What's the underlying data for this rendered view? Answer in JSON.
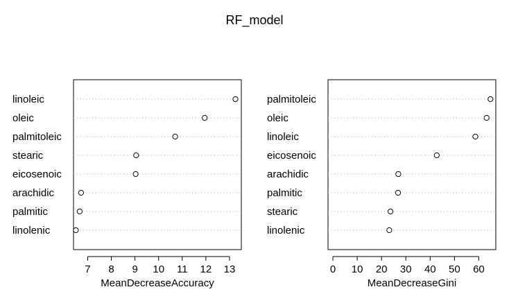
{
  "title": "RF_model",
  "chart_data": [
    {
      "type": "scatter",
      "subtype": "dotchart",
      "xlabel": "MeanDecreaseAccuracy",
      "ylabel": "",
      "xlim": [
        6.4,
        13.5
      ],
      "xticks": [
        7,
        8,
        9,
        10,
        11,
        12,
        13
      ],
      "grid": "dotted horizontal",
      "categories": [
        "linoleic",
        "oleic",
        "palmitoleic",
        "stearic",
        "eicosenoic",
        "arachidic",
        "palmitic",
        "linolenic"
      ],
      "values": [
        13.25,
        11.95,
        10.7,
        9.05,
        9.03,
        6.72,
        6.66,
        6.5
      ]
    },
    {
      "type": "scatter",
      "subtype": "dotchart",
      "xlabel": "MeanDecreaseGini",
      "ylabel": "",
      "xlim": [
        -2,
        67
      ],
      "xticks": [
        0,
        10,
        20,
        30,
        40,
        50,
        60
      ],
      "grid": "dotted horizontal",
      "categories": [
        "palmitoleic",
        "oleic",
        "linoleic",
        "eicosenoic",
        "arachidic",
        "palmitic",
        "stearic",
        "linolenic"
      ],
      "values": [
        64.8,
        63.2,
        58.6,
        42.7,
        26.9,
        26.8,
        23.7,
        23.2
      ]
    }
  ]
}
